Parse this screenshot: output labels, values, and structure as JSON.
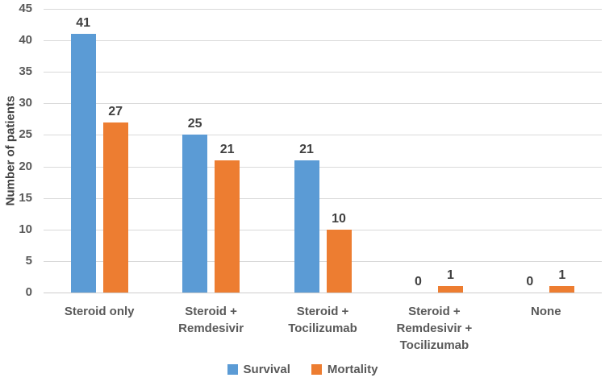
{
  "chart_data": {
    "type": "bar",
    "title": "",
    "categories": [
      "Steroid only",
      "Steroid + Remdesivir",
      "Steroid + Tocilizumab",
      "Steroid + Remdesivir + Tocilizumab",
      "None"
    ],
    "series": [
      {
        "name": "Survival",
        "color": "#5B9BD5",
        "values": [
          41,
          25,
          21,
          0,
          0
        ]
      },
      {
        "name": "Mortality",
        "color": "#ED7D31",
        "values": [
          27,
          21,
          10,
          1,
          1
        ]
      }
    ],
    "xlabel": "",
    "ylabel": "Number of patients",
    "ylim": [
      0,
      45
    ],
    "yticks": [
      0,
      5,
      10,
      15,
      20,
      25,
      30,
      35,
      40,
      45
    ],
    "grid": true,
    "data_labels": true,
    "legend_position": "bottom",
    "colors": {
      "gridline": "#d9d9d9",
      "axis_line": "#cfcdcd",
      "tick_text": "#595959",
      "data_label_text": "#404040",
      "axis_title_text": "#404040"
    }
  }
}
